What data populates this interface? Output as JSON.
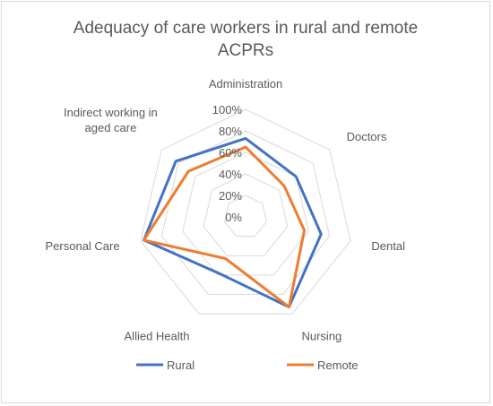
{
  "chart_data": {
    "type": "radar",
    "title": "Adequacy of care workers in rural and remote ACPRs",
    "title_lines": [
      "Adequacy of care workers in rural and remote",
      "ACPRs"
    ],
    "categories": [
      "Administration",
      "Doctors",
      "Dental",
      "Nursing",
      "Allied Health",
      "Personal Care",
      "Indirect working in aged care"
    ],
    "category_label_lines": [
      [
        "Administration"
      ],
      [
        "Doctors"
      ],
      [
        "Dental"
      ],
      [
        "Nursing"
      ],
      [
        "Allied Health"
      ],
      [
        "Personal Care"
      ],
      [
        "Indirect working in",
        "aged care"
      ]
    ],
    "radial_axis": {
      "min": 0,
      "max": 100,
      "ticks": [
        0,
        20,
        40,
        60,
        80,
        100
      ],
      "tick_labels": [
        "0%",
        "20%",
        "40%",
        "60%",
        "80%",
        "100%"
      ]
    },
    "series": [
      {
        "name": "Rural",
        "color": "#4472c4",
        "values": [
          73,
          60,
          72,
          93,
          58,
          97,
          83
        ]
      },
      {
        "name": "Remote",
        "color": "#ed7d31",
        "values": [
          65,
          46,
          56,
          93,
          43,
          97,
          68
        ]
      }
    ],
    "gridlines": true,
    "legend_position": "bottom"
  }
}
